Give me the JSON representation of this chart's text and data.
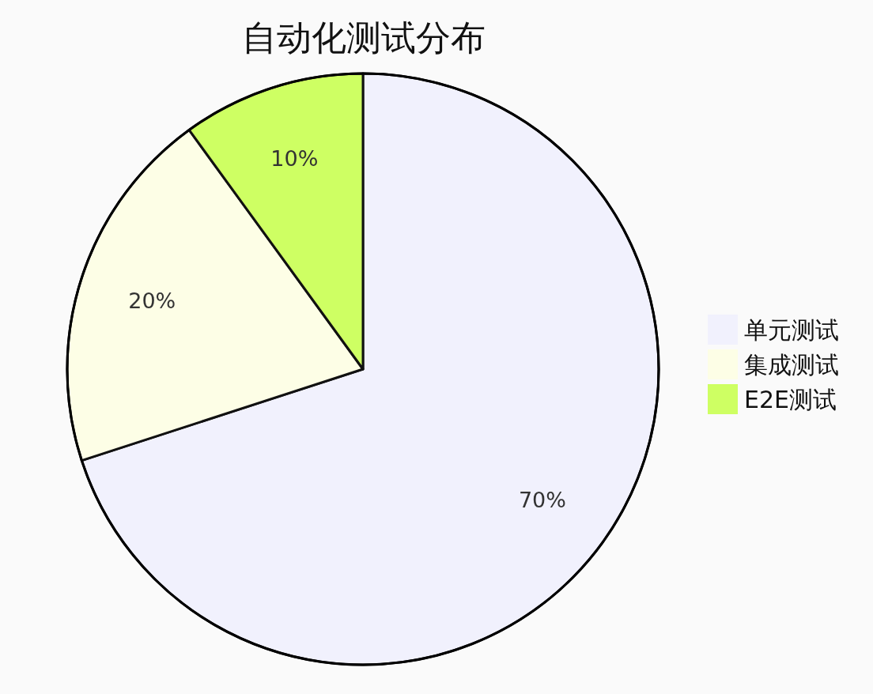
{
  "chart_data": {
    "type": "pie",
    "title": "自动化测试分布",
    "categories": [
      "单元测试",
      "集成测试",
      "E2E测试"
    ],
    "values": [
      70,
      20,
      10
    ],
    "colors": [
      "#f1f1fd",
      "#fdfee6",
      "#ceff63"
    ],
    "value_labels": [
      "70%",
      "20%",
      "10%"
    ],
    "legend": "right"
  }
}
